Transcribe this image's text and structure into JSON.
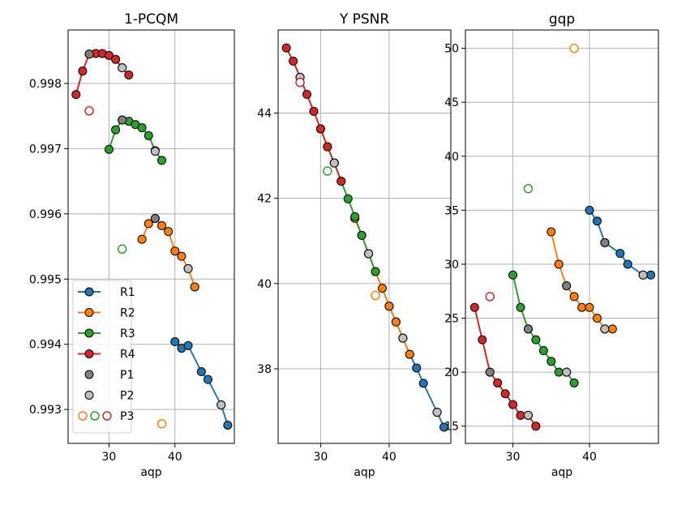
{
  "colors": {
    "R1": "#1f77b4",
    "R2": "#ff7f0e",
    "R3": "#2ca02c",
    "R4": "#d62728",
    "P1": "#808080",
    "P2": "#c0c0c0",
    "grid": "#b0b0b0"
  },
  "legend": {
    "entries": [
      {
        "label": "R1",
        "kind": "line",
        "color": "#1f77b4"
      },
      {
        "label": "R2",
        "kind": "line",
        "color": "#ff7f0e"
      },
      {
        "label": "R3",
        "kind": "line",
        "color": "#2ca02c"
      },
      {
        "label": "R4",
        "kind": "line",
        "color": "#d62728"
      },
      {
        "label": "P1",
        "kind": "marker",
        "color": "#808080"
      },
      {
        "label": "P2",
        "kind": "marker",
        "color": "#c0c0c0"
      },
      {
        "label": "P3",
        "kind": "hollow",
        "colors": [
          "#ff7f0e",
          "#2ca02c",
          "#d62728"
        ]
      }
    ]
  },
  "chart_data": [
    {
      "type": "line",
      "title": "1-PCQM",
      "xlabel": "aqp",
      "ylabel": "",
      "xlim": [
        23.8,
        49
      ],
      "ylim": [
        0.99248,
        0.99882
      ],
      "xticks": [
        30,
        40
      ],
      "yticks": [
        0.993,
        0.994,
        0.995,
        0.996,
        0.997,
        0.998
      ],
      "ytick_labels": [
        "0.993",
        "0.994",
        "0.995",
        "0.996",
        "0.997",
        "0.998"
      ],
      "grid": true,
      "legend_loc": "lower-left",
      "series": [
        {
          "name": "R1",
          "x": [
            40,
            41,
            42,
            44,
            45,
            47,
            48
          ],
          "y": [
            0.99404,
            0.99394,
            0.99398,
            0.99358,
            0.99346,
            0.99307,
            0.99276
          ]
        },
        {
          "name": "R2",
          "x": [
            35,
            36,
            37,
            38,
            39,
            40,
            41,
            42,
            43
          ],
          "y": [
            0.99561,
            0.99585,
            0.99593,
            0.99582,
            0.99573,
            0.99543,
            0.99535,
            0.99516,
            0.99488
          ]
        },
        {
          "name": "R3",
          "x": [
            30,
            31,
            32,
            33,
            34,
            35,
            36,
            37,
            38
          ],
          "y": [
            0.99699,
            0.99729,
            0.99744,
            0.99742,
            0.99737,
            0.99732,
            0.9972,
            0.99697,
            0.99682
          ]
        },
        {
          "name": "R4",
          "x": [
            25,
            26,
            27,
            28,
            29,
            30,
            31,
            32,
            33
          ],
          "y": [
            0.99783,
            0.99819,
            0.99845,
            0.99846,
            0.99846,
            0.99843,
            0.99837,
            0.99824,
            0.99813
          ]
        }
      ],
      "p1_points": [
        {
          "x": 37,
          "y": 0.99593
        },
        {
          "x": 27,
          "y": 0.99845
        },
        {
          "x": 32,
          "y": 0.99744
        }
      ],
      "p2_points": [
        {
          "x": 37,
          "y": 0.99696
        },
        {
          "x": 42,
          "y": 0.99516
        },
        {
          "x": 47,
          "y": 0.99307
        },
        {
          "x": 32,
          "y": 0.99824
        }
      ],
      "p3_points": [
        {
          "x": 38,
          "y": 0.99278,
          "color": "#ff7f0e"
        },
        {
          "x": 32,
          "y": 0.99546,
          "color": "#2ca02c"
        },
        {
          "x": 27,
          "y": 0.99758,
          "color": "#d62728"
        }
      ]
    },
    {
      "type": "line",
      "title": "Y PSNR",
      "xlabel": "aqp",
      "ylabel": "",
      "xlim": [
        23.8,
        49
      ],
      "ylim": [
        36.25,
        45.95
      ],
      "xticks": [
        30,
        40
      ],
      "yticks": [
        38,
        40,
        42,
        44
      ],
      "ytick_labels": [
        "38",
        "40",
        "42",
        "44"
      ],
      "grid": true,
      "series": [
        {
          "name": "R1",
          "x": [
            40,
            41,
            42,
            43,
            44,
            45,
            47,
            48
          ],
          "y": [
            39.47,
            39.1,
            38.72,
            38.34,
            38.02,
            37.66,
            36.98,
            36.63
          ]
        },
        {
          "name": "R2",
          "x": [
            35,
            36,
            37,
            38,
            39,
            40,
            41,
            42,
            43
          ],
          "y": [
            41.53,
            41.13,
            40.7,
            40.28,
            39.89,
            39.47,
            39.1,
            38.72,
            38.34
          ]
        },
        {
          "name": "R3",
          "x": [
            30,
            31,
            32,
            33,
            34,
            35,
            36,
            37,
            38
          ],
          "y": [
            43.63,
            43.21,
            42.83,
            42.4,
            41.99,
            41.57,
            41.13,
            40.7,
            40.28
          ]
        },
        {
          "name": "R4",
          "x": [
            25,
            26,
            27,
            28,
            29,
            30,
            31,
            32,
            33
          ],
          "y": [
            45.53,
            45.22,
            44.84,
            44.44,
            44.04,
            43.63,
            43.21,
            42.83,
            42.4
          ]
        }
      ],
      "p1_points": [
        {
          "x": 27,
          "y": 44.84
        },
        {
          "x": 32,
          "y": 42.83
        },
        {
          "x": 37,
          "y": 40.7
        }
      ],
      "p2_points": [
        {
          "x": 27,
          "y": 44.84
        },
        {
          "x": 32,
          "y": 42.83
        },
        {
          "x": 37,
          "y": 40.7
        },
        {
          "x": 42,
          "y": 38.72
        },
        {
          "x": 47,
          "y": 36.98
        }
      ],
      "p3_points": [
        {
          "x": 38,
          "y": 39.72,
          "color": "#ff7f0e"
        },
        {
          "x": 31,
          "y": 42.64,
          "color": "#2ca02c"
        },
        {
          "x": 27,
          "y": 44.72,
          "color": "#d62728"
        }
      ]
    },
    {
      "type": "line",
      "title": "gqp",
      "xlabel": "aqp",
      "ylabel": "",
      "xlim": [
        23.8,
        49
      ],
      "ylim": [
        13.4,
        51.7
      ],
      "xticks": [
        30,
        40
      ],
      "yticks": [
        15,
        20,
        25,
        30,
        35,
        40,
        45,
        50
      ],
      "ytick_labels": [
        "15",
        "20",
        "25",
        "30",
        "35",
        "40",
        "45",
        "50"
      ],
      "grid": true,
      "series": [
        {
          "name": "R1",
          "x": [
            40,
            41,
            42,
            44,
            45,
            47,
            48
          ],
          "y": [
            35,
            34,
            32,
            31,
            30,
            29,
            29
          ]
        },
        {
          "name": "R2",
          "x": [
            35,
            36,
            37,
            38,
            39,
            40,
            41,
            42,
            43
          ],
          "y": [
            33,
            30,
            28,
            27,
            26,
            26,
            25,
            24,
            24
          ]
        },
        {
          "name": "R3",
          "x": [
            30,
            31,
            32,
            33,
            34,
            35,
            36,
            37,
            38
          ],
          "y": [
            29,
            26,
            24,
            23,
            22,
            21,
            20,
            20,
            19
          ]
        },
        {
          "name": "R4",
          "x": [
            25,
            26,
            27,
            28,
            29,
            30,
            31,
            32,
            33
          ],
          "y": [
            26,
            23,
            20,
            19,
            18,
            17,
            16,
            16,
            15
          ]
        }
      ],
      "p1_points": [
        {
          "x": 27,
          "y": 20
        },
        {
          "x": 32,
          "y": 24
        },
        {
          "x": 37,
          "y": 28
        },
        {
          "x": 42,
          "y": 32
        }
      ],
      "p2_points": [
        {
          "x": 32,
          "y": 16
        },
        {
          "x": 37,
          "y": 20
        },
        {
          "x": 42,
          "y": 24
        },
        {
          "x": 47,
          "y": 29
        }
      ],
      "p3_points": [
        {
          "x": 38,
          "y": 50,
          "color": "#ff7f0e"
        },
        {
          "x": 32,
          "y": 37,
          "color": "#2ca02c"
        },
        {
          "x": 27,
          "y": 27,
          "color": "#d62728"
        }
      ]
    }
  ]
}
